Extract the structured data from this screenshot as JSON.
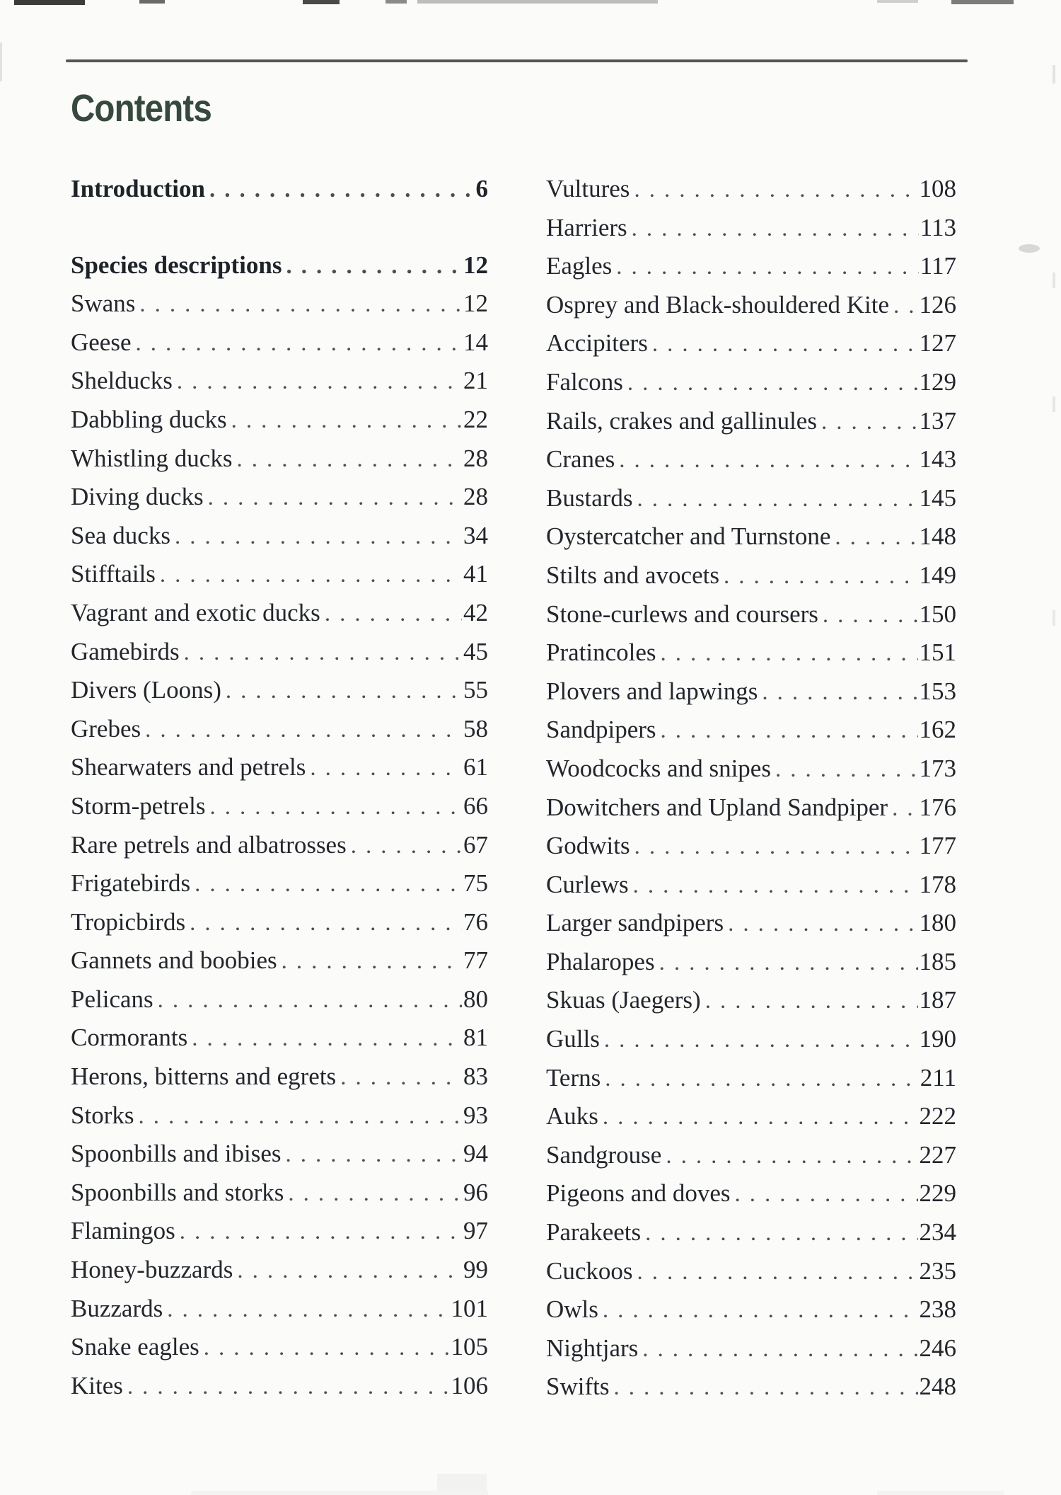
{
  "page": {
    "title": "Contents"
  },
  "toc": {
    "left_column": [
      {
        "label": "Introduction",
        "page": "6",
        "bold": true,
        "gap_after": true
      },
      {
        "label": "Species descriptions",
        "page": "12",
        "bold": true
      },
      {
        "label": "Swans",
        "page": "12"
      },
      {
        "label": "Geese",
        "page": "14"
      },
      {
        "label": "Shelducks",
        "page": "21"
      },
      {
        "label": "Dabbling ducks",
        "page": "22"
      },
      {
        "label": "Whistling ducks",
        "page": "28"
      },
      {
        "label": "Diving ducks",
        "page": "28"
      },
      {
        "label": "Sea ducks",
        "page": "34"
      },
      {
        "label": "Stifftails",
        "page": "41"
      },
      {
        "label": "Vagrant and exotic ducks",
        "page": "42"
      },
      {
        "label": "Gamebirds",
        "page": "45"
      },
      {
        "label": "Divers (Loons)",
        "page": "55"
      },
      {
        "label": "Grebes",
        "page": "58"
      },
      {
        "label": "Shearwaters and petrels",
        "page": "61"
      },
      {
        "label": "Storm-petrels",
        "page": "66"
      },
      {
        "label": "Rare petrels and albatrosses",
        "page": "67"
      },
      {
        "label": "Frigatebirds",
        "page": "75"
      },
      {
        "label": "Tropicbirds",
        "page": "76"
      },
      {
        "label": "Gannets and boobies",
        "page": "77"
      },
      {
        "label": "Pelicans",
        "page": "80"
      },
      {
        "label": "Cormorants",
        "page": "81"
      },
      {
        "label": "Herons, bitterns and egrets",
        "page": "83"
      },
      {
        "label": "Storks",
        "page": "93"
      },
      {
        "label": "Spoonbills and ibises",
        "page": "94"
      },
      {
        "label": "Spoonbills and storks",
        "page": "96"
      },
      {
        "label": "Flamingos",
        "page": "97"
      },
      {
        "label": "Honey-buzzards",
        "page": "99"
      },
      {
        "label": "Buzzards",
        "page": "101"
      },
      {
        "label": "Snake eagles",
        "page": "105"
      },
      {
        "label": "Kites",
        "page": "106"
      }
    ],
    "right_column": [
      {
        "label": "Vultures",
        "page": "108"
      },
      {
        "label": "Harriers",
        "page": "113"
      },
      {
        "label": "Eagles",
        "page": "117"
      },
      {
        "label": "Osprey and Black-shouldered Kite",
        "page": "126"
      },
      {
        "label": "Accipiters",
        "page": "127"
      },
      {
        "label": "Falcons",
        "page": "129"
      },
      {
        "label": "Rails, crakes and gallinules",
        "page": "137"
      },
      {
        "label": "Cranes",
        "page": "143"
      },
      {
        "label": "Bustards",
        "page": "145"
      },
      {
        "label": "Oystercatcher and Turnstone",
        "page": "148"
      },
      {
        "label": "Stilts and avocets",
        "page": "149"
      },
      {
        "label": "Stone-curlews and coursers",
        "page": "150"
      },
      {
        "label": "Pratincoles",
        "page": "151"
      },
      {
        "label": "Plovers and lapwings",
        "page": "153"
      },
      {
        "label": "Sandpipers",
        "page": "162"
      },
      {
        "label": "Woodcocks and snipes",
        "page": "173"
      },
      {
        "label": "Dowitchers and Upland Sandpiper",
        "page": "176"
      },
      {
        "label": "Godwits",
        "page": "177"
      },
      {
        "label": "Curlews",
        "page": "178"
      },
      {
        "label": "Larger sandpipers",
        "page": "180"
      },
      {
        "label": "Phalaropes",
        "page": "185"
      },
      {
        "label": "Skuas (Jaegers)",
        "page": "187"
      },
      {
        "label": "Gulls",
        "page": "190"
      },
      {
        "label": "Terns",
        "page": "211"
      },
      {
        "label": "Auks",
        "page": "222"
      },
      {
        "label": "Sandgrouse",
        "page": "227"
      },
      {
        "label": "Pigeons and doves",
        "page": "229"
      },
      {
        "label": "Parakeets",
        "page": "234"
      },
      {
        "label": "Cuckoos",
        "page": "235"
      },
      {
        "label": "Owls",
        "page": "238"
      },
      {
        "label": "Nightjars",
        "page": "246"
      },
      {
        "label": "Swifts",
        "page": "248"
      }
    ]
  }
}
